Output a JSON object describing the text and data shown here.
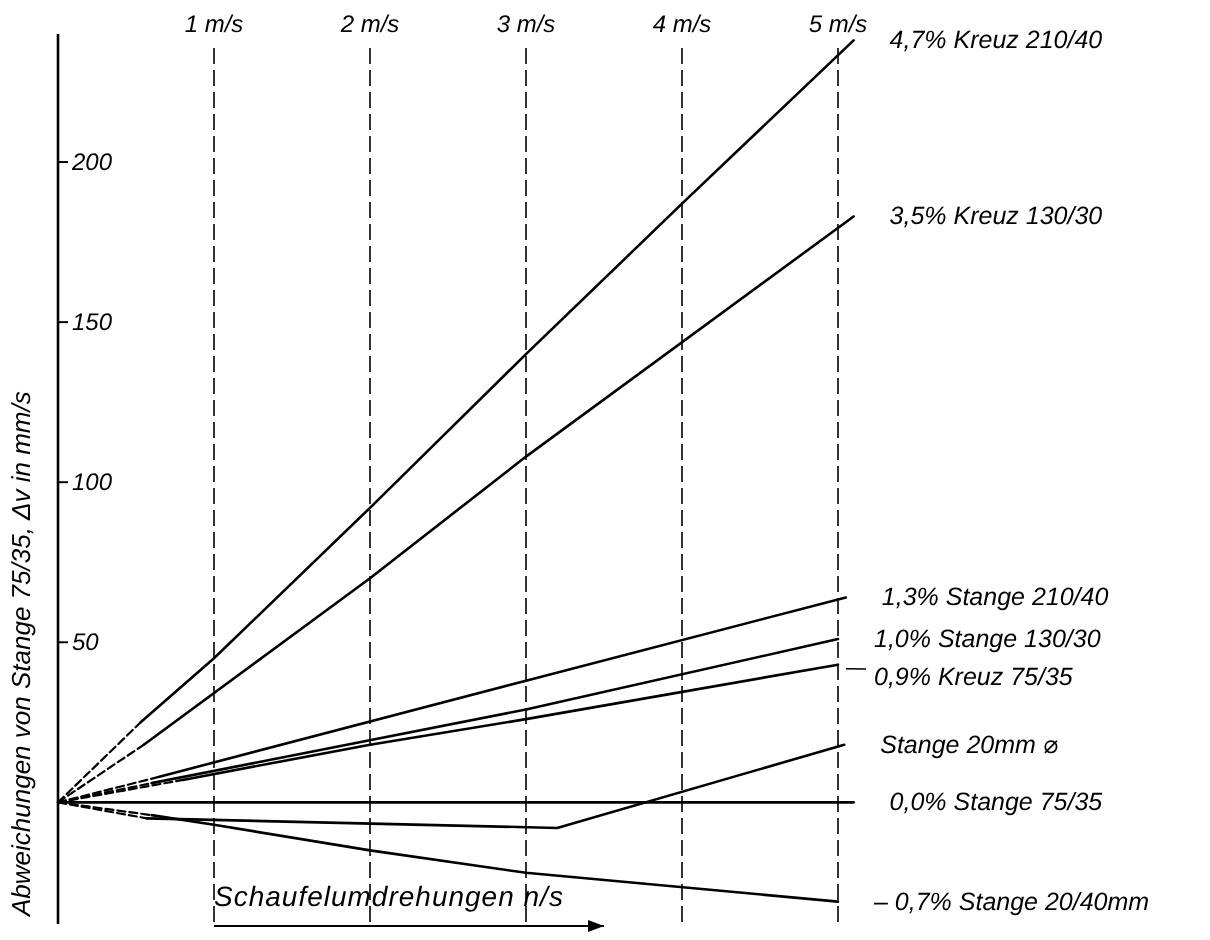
{
  "chart_data": {
    "type": "line",
    "ylabel": "Abweichungen von Stange 75/35, Δv in mm/s",
    "xlabel": "Schaufelumdrehungen  n/s",
    "xlim": [
      0,
      5.1
    ],
    "ylim": [
      -38,
      240
    ],
    "yticks": [
      50,
      100,
      150,
      200
    ],
    "xticks": [
      {
        "value": 1,
        "label": "1 m/s"
      },
      {
        "value": 2,
        "label": "2 m/s"
      },
      {
        "value": 3,
        "label": "3 m/s"
      },
      {
        "value": 4,
        "label": "4 m/s"
      },
      {
        "value": 5,
        "label": "5 m/s"
      }
    ],
    "grid": "x",
    "marker": "none",
    "line_style": "solid",
    "series": [
      {
        "name": "4,7%  Kreuz 210/40",
        "color": "#000000",
        "x": [
          0.53,
          1,
          2,
          3,
          4,
          5.1
        ],
        "values": [
          25,
          45,
          92,
          140,
          187,
          238
        ]
      },
      {
        "name": "3,5%  Kreuz 130/30",
        "color": "#000000",
        "x": [
          0.55,
          2,
          3,
          5.1
        ],
        "values": [
          18,
          70,
          108,
          183
        ]
      },
      {
        "name": "1,3%  Stange 210/40",
        "color": "#000000",
        "x": [
          0.65,
          3,
          5.05
        ],
        "values": [
          8,
          38,
          64
        ]
      },
      {
        "name": "1,0%  Stange 130/30",
        "color": "#000000",
        "x": [
          0.6,
          3,
          5.0
        ],
        "values": [
          6,
          29,
          51
        ]
      },
      {
        "name": "0,9%  Kreuz  75/35",
        "color": "#000000",
        "x": [
          0.8,
          2,
          3,
          5.0
        ],
        "values": [
          7,
          18,
          26,
          43
        ]
      },
      {
        "name": "Stange  20mm ⌀",
        "color": "#000000",
        "x": [
          0.57,
          3.2,
          5.04
        ],
        "values": [
          -5,
          -8,
          18
        ]
      },
      {
        "name": "0,0%  Stange  75/35",
        "color": "#000000",
        "x": [
          0,
          5.1
        ],
        "values": [
          0,
          0
        ]
      },
      {
        "name": "– 0,7%  Stange  20/40mm",
        "color": "#000000",
        "x": [
          0.6,
          1,
          2,
          3,
          5.0
        ],
        "values": [
          -4,
          -7,
          -15,
          -22,
          -31
        ]
      },
      {
        "color": "#000000",
        "line_style": "dashed",
        "x": [
          0,
          0.53
        ],
        "values": [
          0,
          25
        ]
      },
      {
        "color": "#000000",
        "line_style": "dashed",
        "x": [
          0,
          0.55
        ],
        "values": [
          0,
          18
        ]
      },
      {
        "color": "#000000",
        "line_style": "dashed",
        "x": [
          0,
          0.65
        ],
        "values": [
          0,
          8
        ]
      },
      {
        "color": "#000000",
        "line_style": "dashed",
        "x": [
          0,
          0.6
        ],
        "values": [
          0,
          6
        ]
      },
      {
        "color": "#000000",
        "line_style": "dashed",
        "x": [
          0,
          0.8
        ],
        "values": [
          0,
          7
        ]
      },
      {
        "color": "#000000",
        "line_style": "dashed",
        "x": [
          0,
          0.57
        ],
        "values": [
          0,
          -5
        ]
      },
      {
        "color": "#000000",
        "line_style": "dashed",
        "x": [
          0,
          0.6
        ],
        "values": [
          0,
          -4
        ]
      }
    ]
  }
}
